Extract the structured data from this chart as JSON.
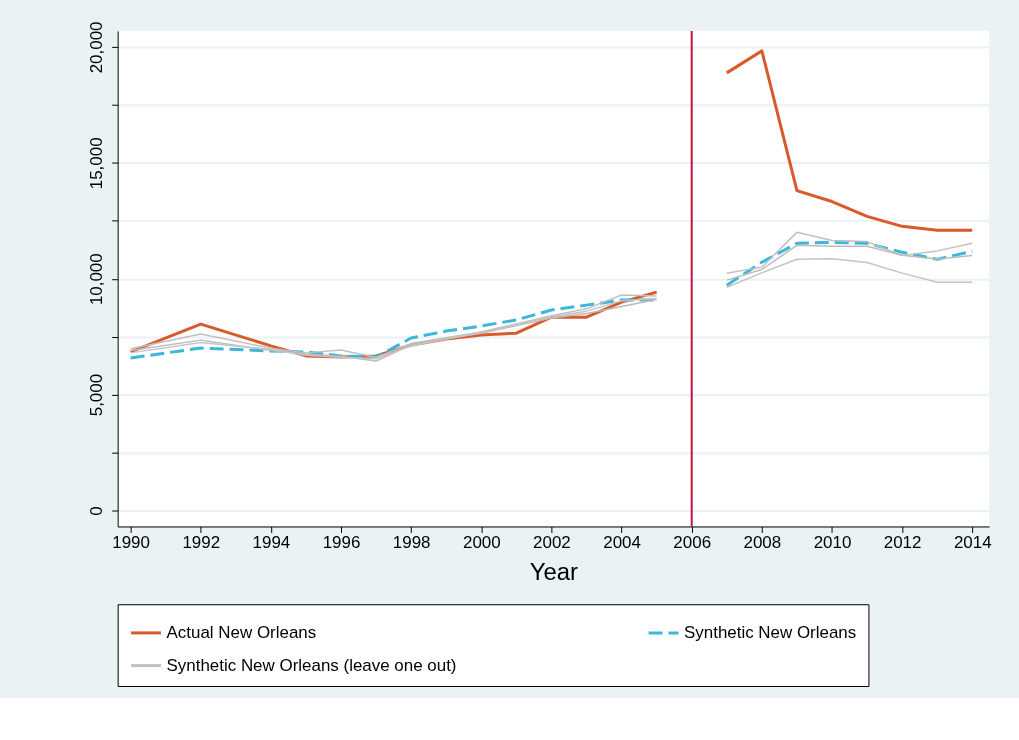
{
  "chart_data": {
    "type": "line",
    "xlabel": "Year",
    "xlim": [
      1989.63,
      2014.48
    ],
    "xticks": [
      1990,
      1992,
      1994,
      1996,
      1998,
      2000,
      2002,
      2004,
      2006,
      2008,
      2010,
      2012,
      2014
    ],
    "ylim": [
      -690,
      20690
    ],
    "yticks": [
      {
        "value": 0,
        "label": "0"
      },
      {
        "value": 2500,
        "label": null
      },
      {
        "value": 5000,
        "label": "5,000"
      },
      {
        "value": 7500,
        "label": null
      },
      {
        "value": 10000,
        "label": "10,000"
      },
      {
        "value": 12500,
        "label": null
      },
      {
        "value": 15000,
        "label": "15,000"
      },
      {
        "value": 17500,
        "label": null
      },
      {
        "value": 20000,
        "label": "20,000"
      }
    ],
    "grid": "y",
    "legend": "bottom",
    "ref_lines": [
      {
        "axis": "x",
        "value": 2006,
        "color": "#c0143c"
      }
    ],
    "series": [
      {
        "name": "Actual New Orleans",
        "color": "#d9592a",
        "line_style": "solid",
        "x": [
          1990,
          1992,
          1994,
          1995,
          1996,
          1997,
          1998,
          1999,
          2000,
          2001,
          2002,
          2003,
          2004,
          2005,
          2006,
          2007,
          2008,
          2009,
          2010,
          2011,
          2012,
          2013,
          2014
        ],
        "values": [
          6840,
          8040,
          7100,
          6670,
          6620,
          6670,
          7140,
          7400,
          7570,
          7650,
          8340,
          8340,
          8990,
          9420,
          null,
          18880,
          19830,
          13800,
          13330,
          12690,
          12260,
          12090,
          12090
        ]
      },
      {
        "name": "Synthetic New Orleans",
        "color": "#3cb5df",
        "line_style": "dashed",
        "x": [
          1990,
          1992,
          1994,
          1995,
          1996,
          1997,
          1998,
          1999,
          2000,
          2001,
          2002,
          2003,
          2004,
          2005,
          2006,
          2007,
          2008,
          2009,
          2010,
          2011,
          2012,
          2013,
          2014
        ],
        "values": [
          6580,
          7010,
          6880,
          6840,
          6670,
          6620,
          7440,
          7740,
          7960,
          8220,
          8650,
          8860,
          9080,
          9080,
          null,
          9720,
          10710,
          11530,
          11570,
          11530,
          11140,
          10840,
          11180
        ]
      },
      {
        "name": "Synthetic New Orleans (leave one out)",
        "color": "#c0c0c0",
        "line_style": "solid",
        "x": [
          1990,
          1992,
          1994,
          1995,
          1996,
          1997,
          1998,
          2000,
          2002,
          2003,
          2004,
          2005,
          2006,
          2007,
          2008,
          2009,
          2010,
          2011,
          2012,
          2013,
          2014
        ],
        "values": [
          6980,
          7610,
          7000,
          6800,
          6920,
          6600,
          7200,
          7700,
          8400,
          8700,
          9300,
          9250,
          null,
          10240,
          10500,
          12000,
          11650,
          11600,
          11000,
          11200,
          11530
        ]
      },
      {
        "color": "#bcbcbc",
        "line_style": "solid",
        "x": [
          1990,
          1992,
          1994,
          1995,
          1996,
          1997,
          1998,
          2000,
          2002,
          2003,
          2004,
          2005,
          2006,
          2007,
          2008,
          2009,
          2010,
          2011,
          2012,
          2013,
          2014
        ],
        "values": [
          6900,
          7350,
          6900,
          6750,
          6650,
          6450,
          7150,
          7650,
          8300,
          8500,
          8800,
          9100,
          null,
          9940,
          10400,
          11440,
          11400,
          11400,
          11010,
          10850,
          11000
        ]
      },
      {
        "color": "#c4c4c4",
        "line_style": "solid",
        "x": [
          1990,
          1992,
          1994,
          1995,
          1996,
          1997,
          1998,
          2000,
          2002,
          2003,
          2004,
          2005,
          2006,
          2007,
          2008,
          2009,
          2010,
          2011,
          2012,
          2013,
          2014
        ],
        "values": [
          6800,
          7250,
          6950,
          6700,
          6600,
          6550,
          7100,
          7700,
          8350,
          8600,
          9050,
          9150,
          null,
          9630,
          10250,
          10840,
          10860,
          10700,
          10240,
          9850,
          9850
        ]
      }
    ]
  }
}
